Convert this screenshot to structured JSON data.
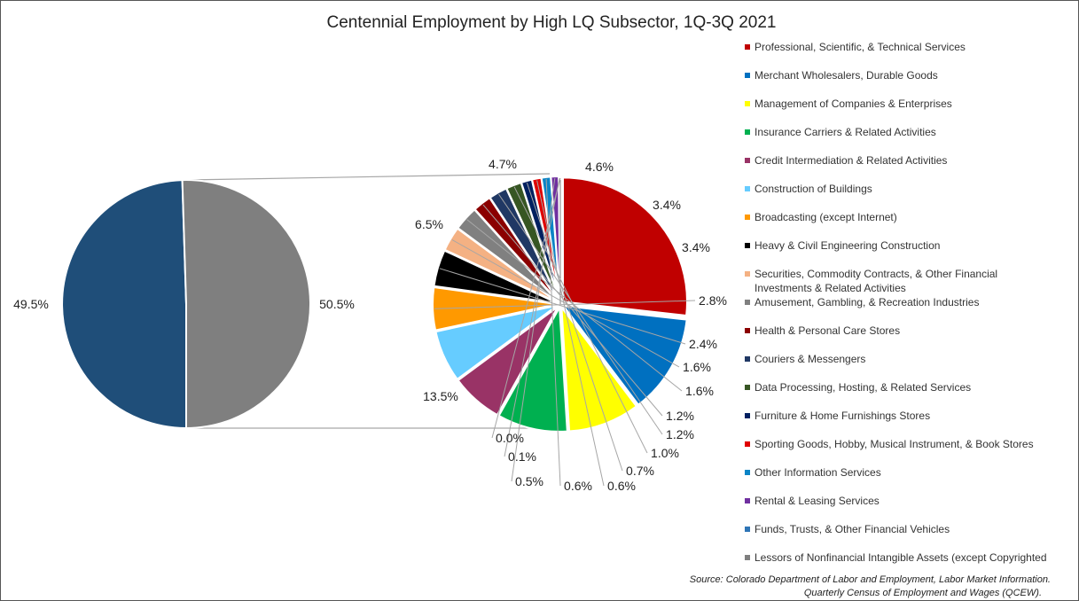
{
  "chart_data": {
    "type": "pie",
    "title": "Centennial Employment by High LQ Subsector, 1Q-3Q 2021",
    "outer_pie": {
      "slices": [
        {
          "label": "49.5%",
          "value": 49.5,
          "color": "#1f4e79"
        },
        {
          "label": "50.5%",
          "value": 50.5,
          "color": "#7f7f7f"
        }
      ]
    },
    "detail_pie": {
      "slices": [
        {
          "name": "Professional, Scientific, & Technical Services",
          "value": 13.5,
          "label": "13.5%",
          "color": "#c00000"
        },
        {
          "name": "Merchant Wholesalers, Durable Goods",
          "value": 6.5,
          "label": "6.5%",
          "color": "#0070c0"
        },
        {
          "name": "Management of Companies & Enterprises",
          "value": 4.7,
          "label": "4.7%",
          "color": "#ffff00"
        },
        {
          "name": "Insurance Carriers & Related Activities",
          "value": 4.6,
          "label": "4.6%",
          "color": "#00b050"
        },
        {
          "name": "Credit Intermediation & Related Activities",
          "value": 3.4,
          "label": "3.4%",
          "color": "#993366"
        },
        {
          "name": "Construction of Buildings",
          "value": 3.4,
          "label": "3.4%",
          "color": "#66ccff"
        },
        {
          "name": "Broadcasting (except Internet)",
          "value": 2.8,
          "label": "2.8%",
          "color": "#ff9900"
        },
        {
          "name": "Heavy & Civil Engineering Construction",
          "value": 2.4,
          "label": "2.4%",
          "color": "#000000"
        },
        {
          "name": "Securities, Commodity Contracts, & Other Financial Investments & Related Activities",
          "value": 1.6,
          "label": "1.6%",
          "color": "#f4b183"
        },
        {
          "name": "Amusement, Gambling, & Recreation Industries",
          "value": 1.6,
          "label": "1.6%",
          "color": "#808080"
        },
        {
          "name": "Health & Personal Care Stores",
          "value": 1.2,
          "label": "1.2%",
          "color": "#8b0000"
        },
        {
          "name": "Couriers & Messengers",
          "value": 1.2,
          "label": "1.2%",
          "color": "#203864"
        },
        {
          "name": "Data Processing, Hosting, & Related Services",
          "value": 1.0,
          "label": "1.0%",
          "color": "#375623"
        },
        {
          "name": "Furniture & Home Furnishings Stores",
          "value": 0.7,
          "label": "0.7%",
          "color": "#002060"
        },
        {
          "name": "Sporting Goods, Hobby, Musical Instrument, & Book Stores",
          "value": 0.6,
          "label": "0.6%",
          "color": "#e00000"
        },
        {
          "name": "Other Information Services",
          "value": 0.6,
          "label": "0.6%",
          "color": "#0b84c6"
        },
        {
          "name": "Rental & Leasing Services",
          "value": 0.5,
          "label": "0.5%",
          "color": "#7030a0"
        },
        {
          "name": "Funds, Trusts, & Other Financial Vehicles",
          "value": 0.1,
          "label": "0.1%",
          "color": "#2e75b6"
        },
        {
          "name": "Lessors of Nonfinancial Intangible Assets (except Copyrighted",
          "value": 0.0,
          "label": "0.0%",
          "color": "#7f7f7f"
        }
      ]
    },
    "legend": {
      "placement": "right",
      "items": [
        {
          "lines": [
            "Professional, Scientific, & Technical Services"
          ],
          "color": "#c00000"
        },
        {
          "lines": [
            "Merchant Wholesalers, Durable Goods"
          ],
          "color": "#0070c0"
        },
        {
          "lines": [
            "Management of Companies & Enterprises"
          ],
          "color": "#ffff00"
        },
        {
          "lines": [
            "Insurance Carriers & Related Activities"
          ],
          "color": "#00b050"
        },
        {
          "lines": [
            "Credit Intermediation & Related Activities"
          ],
          "color": "#993366"
        },
        {
          "lines": [
            "Construction of Buildings"
          ],
          "color": "#66ccff"
        },
        {
          "lines": [
            "Broadcasting (except Internet)"
          ],
          "color": "#ff9900"
        },
        {
          "lines": [
            "Heavy & Civil Engineering Construction"
          ],
          "color": "#000000"
        },
        {
          "lines": [
            "Securities, Commodity Contracts, & Other Financial",
            "Investments & Related Activities"
          ],
          "color": "#f4b183"
        },
        {
          "lines": [
            "Amusement, Gambling, & Recreation Industries"
          ],
          "color": "#808080"
        },
        {
          "lines": [
            "Health & Personal Care Stores"
          ],
          "color": "#8b0000"
        },
        {
          "lines": [
            "Couriers & Messengers"
          ],
          "color": "#203864"
        },
        {
          "lines": [
            "Data Processing, Hosting, & Related Services"
          ],
          "color": "#375623"
        },
        {
          "lines": [
            "Furniture & Home Furnishings Stores"
          ],
          "color": "#002060"
        },
        {
          "lines": [
            "Sporting Goods, Hobby, Musical Instrument, & Book Stores"
          ],
          "color": "#e00000"
        },
        {
          "lines": [
            "Other Information Services"
          ],
          "color": "#0b84c6"
        },
        {
          "lines": [
            "Rental & Leasing Services"
          ],
          "color": "#7030a0"
        },
        {
          "lines": [
            "Funds, Trusts, & Other Financial Vehicles"
          ],
          "color": "#2e75b6"
        },
        {
          "lines": [
            "Lessors of Nonfinancial Intangible Assets (except Copyrighted"
          ],
          "color": "#7f7f7f"
        }
      ]
    },
    "source_lines": [
      "Source: Colorado Department of Labor and Employment, Labor Market Information.",
      "Quarterly Census of Employment and Wages (QCEW)."
    ]
  }
}
